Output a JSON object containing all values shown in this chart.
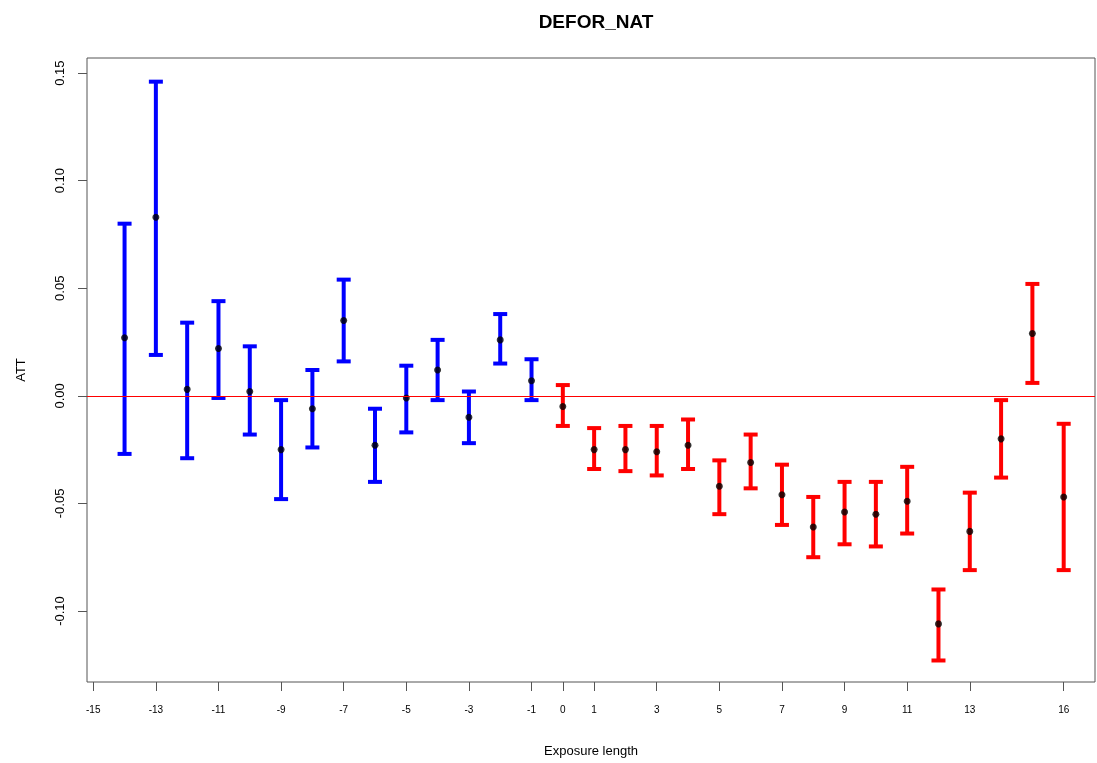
{
  "chart_data": {
    "type": "scatter",
    "title": "DEFOR_NAT",
    "xlabel": "Exposure length",
    "ylabel": "ATT",
    "xlim": [
      -15.2,
      17
    ],
    "ylim": [
      -0.133,
      0.157
    ],
    "xticks": [
      -15,
      -13,
      -11,
      -9,
      -7,
      -5,
      -3,
      -1,
      0,
      1,
      3,
      5,
      7,
      9,
      11,
      13,
      16
    ],
    "yticks": [
      {
        "value": -0.1,
        "label": "-0.10"
      },
      {
        "value": -0.05,
        "label": "-0.05"
      },
      {
        "value": 0,
        "label": "0.00"
      },
      {
        "value": 0.05,
        "label": "0.05"
      },
      {
        "value": 0.1,
        "label": "0.10"
      },
      {
        "value": 0.15,
        "label": "0.15"
      }
    ],
    "marker": "circle",
    "ref_lines": [
      {
        "axis": "y",
        "value": 0,
        "color": "#ff0000"
      }
    ],
    "series": [
      {
        "color": "#0000ff",
        "colors": [
          "#000000",
          "#000000",
          "#000000",
          "#000000",
          "#000000",
          "#000000",
          "#000000",
          "#000000",
          "#000000",
          "#000000",
          "#000000",
          "#000000",
          "#000000",
          "#000000"
        ],
        "x": [
          -14,
          -13,
          -12,
          -11,
          -10,
          -9,
          -8,
          -7,
          -6,
          -5,
          -4,
          -3,
          -2,
          -1
        ],
        "values": [
          0.027,
          0.083,
          0.003,
          0.022,
          0.002,
          -0.025,
          -0.006,
          0.035,
          -0.023,
          -0.001,
          0.012,
          -0.01,
          0.026,
          0.007
        ],
        "errors": [
          [
            -0.027,
            0.08
          ],
          [
            0.019,
            0.146
          ],
          [
            -0.029,
            0.034
          ],
          [
            -0.001,
            0.044
          ],
          [
            -0.018,
            0.023
          ],
          [
            -0.048,
            -0.002
          ],
          [
            -0.024,
            0.012
          ],
          [
            0.016,
            0.054
          ],
          [
            -0.04,
            -0.006
          ],
          [
            -0.017,
            0.014
          ],
          [
            -0.002,
            0.026
          ],
          [
            -0.022,
            0.002
          ],
          [
            0.015,
            0.038
          ],
          [
            -0.002,
            0.017
          ]
        ]
      },
      {
        "color": "#ff0000",
        "colors": [
          "#000000",
          "#000000",
          "#000000",
          "#000000",
          "#000000",
          "#000000",
          "#000000",
          "#000000",
          "#000000",
          "#000000",
          "#000000",
          "#000000",
          "#000000",
          "#000000",
          "#000000",
          "#000000",
          "#000000"
        ],
        "x": [
          0,
          1,
          2,
          3,
          4,
          5,
          6,
          7,
          8,
          9,
          10,
          11,
          12,
          13,
          14,
          15,
          16
        ],
        "values": [
          -0.005,
          -0.025,
          -0.025,
          -0.026,
          -0.023,
          -0.042,
          -0.031,
          -0.046,
          -0.061,
          -0.054,
          -0.055,
          -0.049,
          -0.106,
          -0.063,
          -0.02,
          0.029,
          -0.047
        ],
        "errors": [
          [
            -0.014,
            0.005
          ],
          [
            -0.034,
            -0.015
          ],
          [
            -0.035,
            -0.014
          ],
          [
            -0.037,
            -0.014
          ],
          [
            -0.034,
            -0.011
          ],
          [
            -0.055,
            -0.03
          ],
          [
            -0.043,
            -0.018
          ],
          [
            -0.06,
            -0.032
          ],
          [
            -0.075,
            -0.047
          ],
          [
            -0.069,
            -0.04
          ],
          [
            -0.07,
            -0.04
          ],
          [
            -0.064,
            -0.033
          ],
          [
            -0.123,
            -0.09
          ],
          [
            -0.081,
            -0.045
          ],
          [
            -0.038,
            -0.002
          ],
          [
            0.006,
            0.052
          ],
          [
            -0.081,
            -0.013
          ]
        ]
      }
    ]
  }
}
